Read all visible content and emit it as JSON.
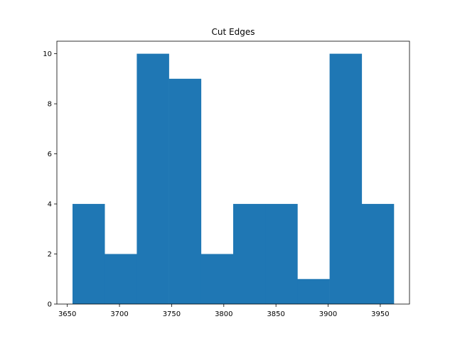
{
  "chart_data": {
    "type": "bar",
    "title": "Cut Edges",
    "xlabel": "",
    "ylabel": "",
    "bin_edges": [
      3655,
      3685.8,
      3716.6,
      3747.4,
      3778.2,
      3809,
      3839.8,
      3870.6,
      3901.4,
      3932.2,
      3963
    ],
    "values": [
      4,
      2,
      10,
      9,
      2,
      4,
      4,
      1,
      10,
      4
    ],
    "xlim": [
      3640,
      3978
    ],
    "ylim": [
      0,
      10.5
    ],
    "xticks": [
      3650,
      3700,
      3750,
      3800,
      3850,
      3900,
      3950
    ],
    "yticks": [
      0,
      2,
      4,
      6,
      8,
      10
    ],
    "bar_color": "#1f77b4",
    "grid": false,
    "legend": "none"
  }
}
